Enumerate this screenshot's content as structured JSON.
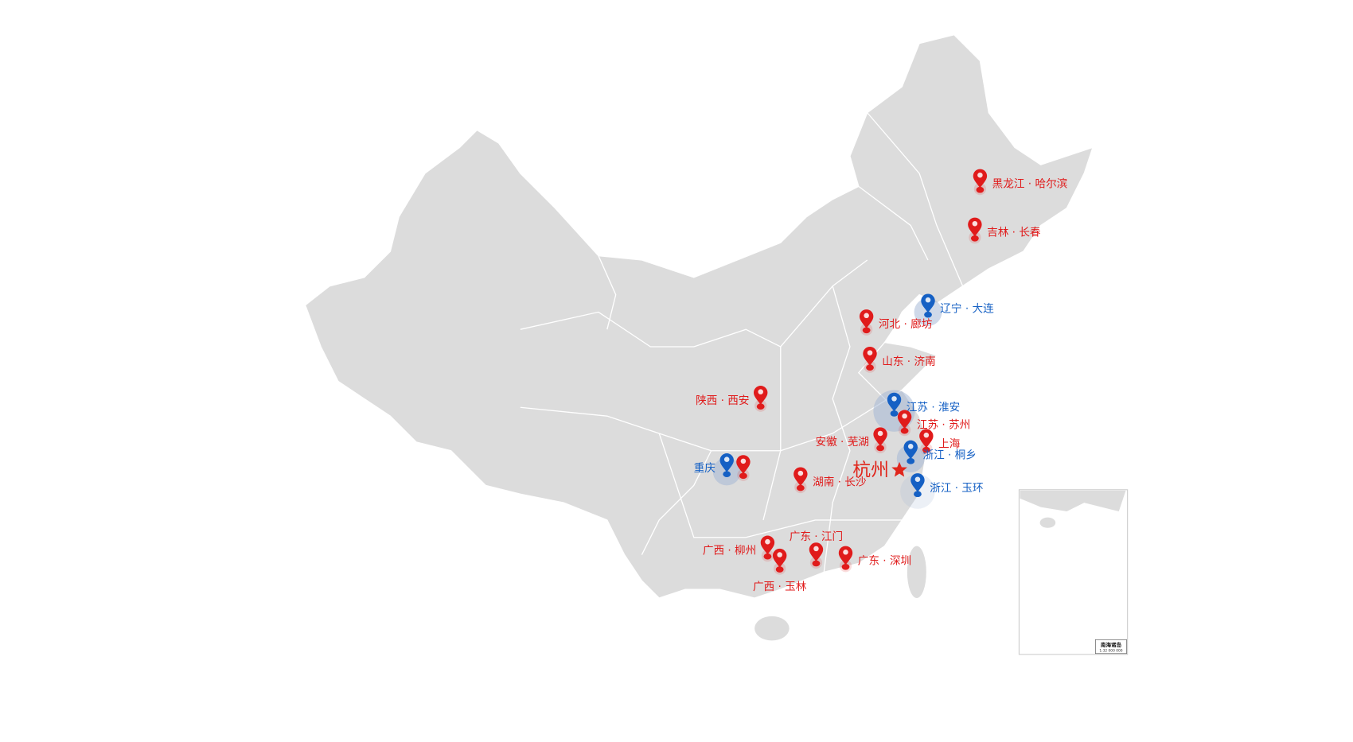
{
  "colors": {
    "land": "#dcdcdc",
    "border": "#ffffff",
    "red": "#e01b1b",
    "blue": "#1560c4",
    "star": "#e0261c"
  },
  "headquarters": {
    "label": "杭州",
    "icon": "star-icon"
  },
  "inset": {
    "title": "南海诸岛",
    "scale": "1:32 000 000"
  },
  "markers": [
    {
      "label": "黑龙江 · 哈尔滨",
      "type": "red",
      "lon": 126.6,
      "lat": 45.8,
      "side": "right"
    },
    {
      "label": "吉林 · 长春",
      "type": "red",
      "lon": 125.3,
      "lat": 43.9,
      "side": "right"
    },
    {
      "label": "辽宁 · 大连",
      "type": "blue",
      "lon": 121.6,
      "lat": 38.9,
      "side": "right",
      "halo": "small"
    },
    {
      "label": "河北 · 廊坊",
      "type": "red",
      "lon": 116.7,
      "lat": 39.5,
      "side": "right"
    },
    {
      "label": "山东 · 济南",
      "type": "red",
      "lon": 117.0,
      "lat": 36.7,
      "side": "right"
    },
    {
      "label": "陕西 · 西安",
      "type": "red",
      "lon": 108.9,
      "lat": 34.3,
      "side": "left"
    },
    {
      "label": "江苏 · 淮安",
      "type": "blue",
      "lon": 119.0,
      "lat": 33.6,
      "side": "right",
      "halo": "large"
    },
    {
      "label": "江苏 · 苏州",
      "type": "red",
      "lon": 120.6,
      "lat": 31.3,
      "side": "right"
    },
    {
      "label": "安徽 · 芜湖",
      "type": "red",
      "lon": 118.4,
      "lat": 31.3,
      "side": "left"
    },
    {
      "label": "上海",
      "type": "red",
      "lon": 121.5,
      "lat": 31.2,
      "side": "right"
    },
    {
      "label": "浙江 · 桐乡",
      "type": "blue",
      "lon": 120.6,
      "lat": 30.6,
      "side": "right",
      "halo": "small"
    },
    {
      "label": "浙江 · 玉环",
      "type": "blue",
      "lon": 121.2,
      "lat": 28.1,
      "side": "right",
      "halo": "medium"
    },
    {
      "label": "重庆",
      "type": "blue",
      "lon": 106.5,
      "lat": 29.6,
      "side": "left",
      "halo": "small"
    },
    {
      "label": "",
      "type": "red",
      "lon": 106.6,
      "lat": 29.5,
      "side": "none"
    },
    {
      "label": "湖南 · 长沙",
      "type": "red",
      "lon": 113.0,
      "lat": 28.2,
      "side": "right"
    },
    {
      "label": "广东 · 江门",
      "type": "red",
      "lon": 113.1,
      "lat": 22.6,
      "side": "top"
    },
    {
      "label": "广西 · 柳州",
      "type": "red",
      "lon": 109.4,
      "lat": 24.3,
      "side": "left"
    },
    {
      "label": "广西 · 玉林",
      "type": "red",
      "lon": 110.2,
      "lat": 22.6,
      "side": "bottom"
    },
    {
      "label": "广东 · 深圳",
      "type": "red",
      "lon": 114.1,
      "lat": 22.5,
      "side": "right"
    }
  ]
}
